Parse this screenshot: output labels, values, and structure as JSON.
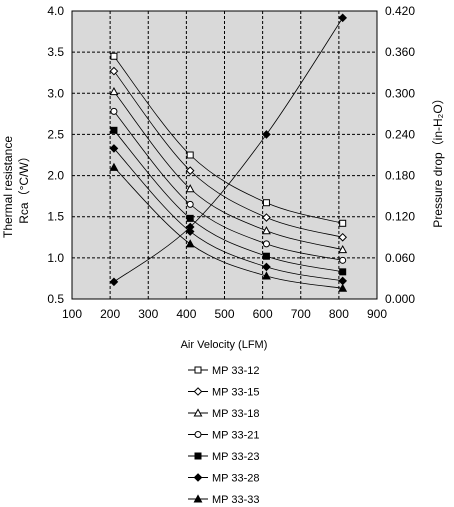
{
  "chart_data": {
    "type": "line",
    "xlabel": "Air Velocity (LFM)",
    "ylabel_left_line1": "Thermal resistance",
    "ylabel_left_line2": "Rca（°C/W）",
    "ylabel_right": "Pressure drop（in-H₂O）",
    "xlim": [
      100,
      900
    ],
    "ylim_left": [
      0.5,
      4.0
    ],
    "ylim_right": [
      0.0,
      0.42
    ],
    "x_ticks": [
      "100",
      "200",
      "300",
      "400",
      "500",
      "600",
      "700",
      "800",
      "900"
    ],
    "y_left_ticks": [
      "0.5",
      "1.0",
      "1.5",
      "2.0",
      "2.5",
      "3.0",
      "3.5",
      "4.0"
    ],
    "y_right_ticks": [
      "0.000",
      "0.060",
      "0.120",
      "0.180",
      "0.240",
      "0.300",
      "0.360",
      "0.420"
    ],
    "grid": true,
    "plot_background": "#d9d9d9",
    "legend_position": "bottom",
    "x": [
      210,
      410,
      610,
      810
    ],
    "series": [
      {
        "name": "MP 33-12",
        "marker": "open-square",
        "values": [
          3.45,
          2.25,
          1.67,
          1.42
        ]
      },
      {
        "name": "MP 33-15",
        "marker": "open-diamond",
        "values": [
          3.27,
          2.06,
          1.49,
          1.25
        ]
      },
      {
        "name": "MP 33-18",
        "marker": "open-triangle",
        "values": [
          3.02,
          1.84,
          1.33,
          1.1
        ]
      },
      {
        "name": "MP 33-21",
        "marker": "open-circle",
        "values": [
          2.78,
          1.65,
          1.17,
          0.97
        ]
      },
      {
        "name": "MP 33-23",
        "marker": "filled-square",
        "values": [
          2.55,
          1.48,
          1.02,
          0.83
        ]
      },
      {
        "name": "MP 33-28",
        "marker": "filled-diamond",
        "values": [
          2.33,
          1.32,
          0.89,
          0.72
        ]
      },
      {
        "name": "MP 33-33",
        "marker": "filled-triangle",
        "values": [
          2.1,
          1.17,
          0.78,
          0.63
        ]
      }
    ],
    "pressure_drop": {
      "axis": "right",
      "marker": "filled-diamond",
      "values": [
        0.025,
        0.105,
        0.24,
        0.41
      ]
    }
  }
}
